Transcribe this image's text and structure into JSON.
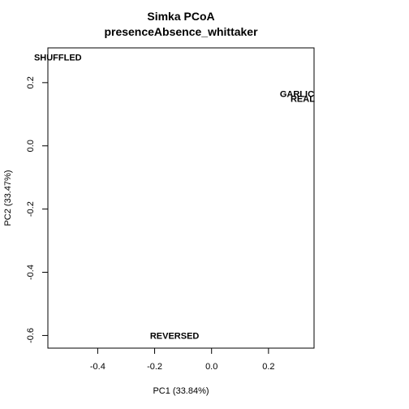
{
  "chart_data": {
    "type": "scatter",
    "title": "Simka PCoA",
    "subtitle": "presenceAbsence_whittaker",
    "xlabel": "PC1 (33.84%)",
    "ylabel": "PC2 (33.47%)",
    "xlim": [
      -0.575,
      0.36
    ],
    "ylim": [
      -0.64,
      0.31
    ],
    "x_ticks": [
      -0.4,
      -0.2,
      0.0,
      0.2
    ],
    "y_ticks": [
      -0.6,
      -0.4,
      -0.2,
      0.0,
      0.2
    ],
    "x_tick_labels": [
      "-0.4",
      "-0.2",
      "0.0",
      "0.2"
    ],
    "y_tick_labels": [
      "-0.6",
      "-0.4",
      "-0.2",
      "0.0",
      "0.2"
    ],
    "grid": false,
    "points": [
      {
        "label": "SHUFFLED",
        "x": -0.54,
        "y": 0.28
      },
      {
        "label": "GARLIC",
        "x": 0.3,
        "y": 0.165
      },
      {
        "label": "REAL",
        "x": 0.32,
        "y": 0.15
      },
      {
        "label": "REVERSED",
        "x": -0.13,
        "y": -0.6
      }
    ]
  }
}
